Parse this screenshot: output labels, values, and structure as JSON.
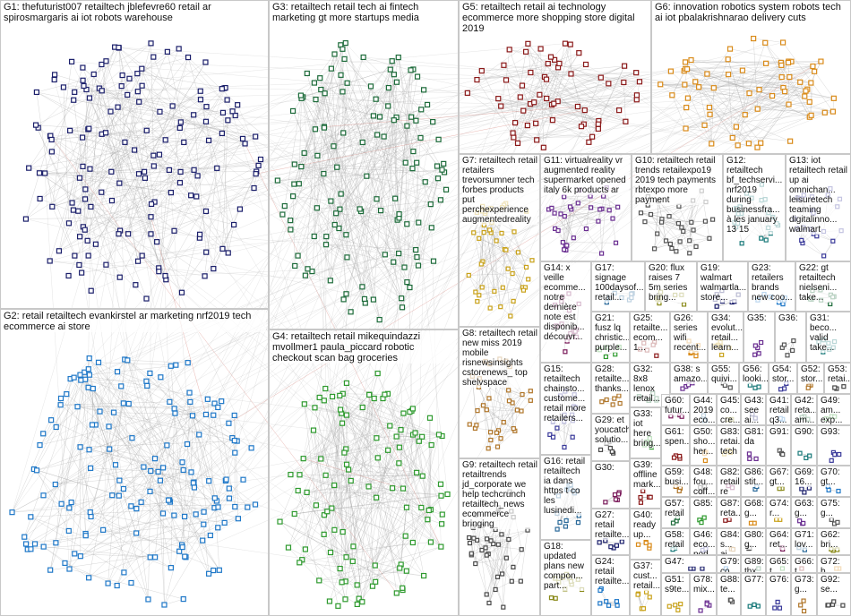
{
  "groups": [
    {
      "label": "G1: thefuturist007 retailtech jblefevre60 retail ar spirosmargaris ai iot robots warehouse"
    },
    {
      "label": "G2: retail retailtech evankirstel ar marketing nrf2019 tech ecommerce ai store"
    },
    {
      "label": "G3: retailtech retail tech ai fintech marketing gt more startups media"
    },
    {
      "label": "G4: retailtech retail mikequindazzi mvollmer1 paula_piccard robotic checkout scan bag groceries"
    },
    {
      "label": "G5: retailtech retail ai technology ecommerce more shopping store digital 2019"
    },
    {
      "label": "G6: innovation robotics system robots tech ai iot pbalakrishnarao delivery cuts"
    },
    {
      "label": "G7: retailtech retail retailers trevorsumner tech forbes products put perchexperience augmentedreality"
    },
    {
      "label": "G11: virtualreality vr augmented reality supermarket opened italy 6k products ar"
    },
    {
      "label": "G10: retailtech retail trends retailexpo19 2019 tech payments rbtexpo more payment"
    },
    {
      "label": "G12: retailtech bf_techservi... nrf2019 during businessfra... à les january 13 15"
    },
    {
      "label": "G13: iot retailtech retail up ai omnichan... leisuretech teaming digitalinno... walmart"
    },
    {
      "label": "G8: retailtech retail new miss 2019 mobile risnewsinsights cstorenews_ top shelvspace"
    },
    {
      "label": "G9: retailtech retail retailtrends jd_corporate we help techcrunch retailtech_news ecommerce bringing"
    },
    {
      "label": "G14: x veille ecomme... notre dernière note est disponib... découvr..."
    },
    {
      "label": "G17: signage 100daysof... retail..."
    },
    {
      "label": "G20: flux raises 7 5m series bring..."
    },
    {
      "label": "G19: walmart walmartla... store..."
    },
    {
      "label": "G23: retailers brands new coo..."
    },
    {
      "label": "G22: gt retailtech nielseni... take..."
    },
    {
      "label": "G21: fusz lq christic... purple..."
    },
    {
      "label": "G25: retailte... ecom... 1..."
    },
    {
      "label": "G26: series wifi recent..."
    },
    {
      "label": "G34: evolut... retail... learn..."
    },
    {
      "label": "G35:"
    },
    {
      "label": "G36:"
    },
    {
      "label": "G31: beco... valid take..."
    },
    {
      "label": "G15: retailtech chainsto... custome... retail more retailers..."
    },
    {
      "label": "G28: retailte... thanks..."
    },
    {
      "label": "G29: et youcatch solutio..."
    },
    {
      "label": "G30:"
    },
    {
      "label": "G16: retail retailtech ia dans https t co les lusinedi..."
    },
    {
      "label": "G18: updated plans new compon... part..."
    },
    {
      "label": "G27: retail retailte..."
    },
    {
      "label": "G24: retail retailte..."
    },
    {
      "label": "G32: 8x8 lenox retail..."
    },
    {
      "label": "G33: iot here bring..."
    },
    {
      "label": "G39: offline mark..."
    },
    {
      "label": "G40: ready up..."
    },
    {
      "label": "G37: cust... retail..."
    },
    {
      "label": "G38: s amazo..."
    },
    {
      "label": "G55: quivi..."
    },
    {
      "label": "G56: looki..."
    },
    {
      "label": "G54: stor..."
    },
    {
      "label": "G52: stor..."
    },
    {
      "label": "G53: retai..."
    },
    {
      "label": "G60: futur..."
    },
    {
      "label": "G44: 2019 eco..."
    },
    {
      "label": "G45: co... cre..."
    },
    {
      "label": "G43: see ai..."
    },
    {
      "label": "G41: retail q3..."
    },
    {
      "label": "G42: reta... am..."
    },
    {
      "label": "G49: am... exp..."
    },
    {
      "label": "G61: spen..."
    },
    {
      "label": "G50: sho... her..."
    },
    {
      "label": "G83: retai... tech"
    },
    {
      "label": "G81: da"
    },
    {
      "label": "G91:"
    },
    {
      "label": "G90:"
    },
    {
      "label": "G93:"
    },
    {
      "label": "G59: busi..."
    },
    {
      "label": "G48: fou... coff..."
    },
    {
      "label": "G82: retail re"
    },
    {
      "label": "G86: stit..."
    },
    {
      "label": "G67: gt..."
    },
    {
      "label": "G69: 16..."
    },
    {
      "label": "G70: gt..."
    },
    {
      "label": "G57: retail"
    },
    {
      "label": "G85:"
    },
    {
      "label": "G87: reta..."
    },
    {
      "label": "G68: g..."
    },
    {
      "label": "G74: r..."
    },
    {
      "label": "G63: g..."
    },
    {
      "label": "G75: g..."
    },
    {
      "label": "G58: retail"
    },
    {
      "label": "G46: eco... pod..."
    },
    {
      "label": "G84: s... ai..."
    },
    {
      "label": "G80: g..."
    },
    {
      "label": "G64: ret..."
    },
    {
      "label": "G71: lov..."
    },
    {
      "label": "G62: bri..."
    },
    {
      "label": "G47:"
    },
    {
      "label": "G79: co..."
    },
    {
      "label": "G89: thx"
    },
    {
      "label": "G65: t..."
    },
    {
      "label": "G66: t..."
    },
    {
      "label": "G72: b..."
    },
    {
      "label": "G51: s9te..."
    },
    {
      "label": "G78: mix..."
    },
    {
      "label": "G88: te..."
    },
    {
      "label": "G77:"
    },
    {
      "label": "G76:"
    },
    {
      "label": "G73: g..."
    },
    {
      "label": "G92: se..."
    }
  ]
}
